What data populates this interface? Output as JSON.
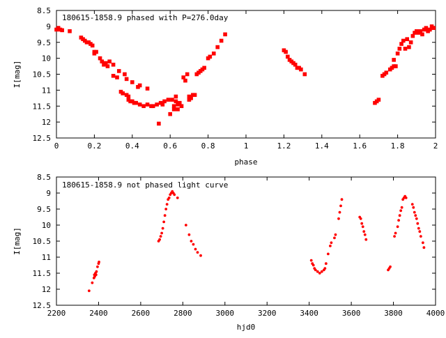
{
  "chart_data": [
    {
      "type": "scatter",
      "title": "180615-1858.9 phased with P=276.0day",
      "xlabel": "phase",
      "ylabel": "I[mag]",
      "xlim": [
        0,
        2
      ],
      "ylim": [
        12.5,
        8.5
      ],
      "y_inverted": true,
      "grid": false,
      "x_ticks": [
        "0",
        "0.2",
        "0.4",
        "0.6",
        "0.8",
        "1",
        "1.2",
        "1.4",
        "1.6",
        "1.8",
        "2"
      ],
      "x_tick_values": [
        0,
        0.2,
        0.4,
        0.6,
        0.8,
        1.0,
        1.2,
        1.4,
        1.6,
        1.8,
        2.0
      ],
      "y_ticks": [
        "8.5",
        "9",
        "9.5",
        "10",
        "10.5",
        "11",
        "11.5",
        "12",
        "12.5"
      ],
      "y_tick_values": [
        8.5,
        9,
        9.5,
        10,
        10.5,
        11,
        11.5,
        12,
        12.5
      ],
      "marker_color": "#ff0000",
      "points": [
        [
          0.0,
          9.1
        ],
        [
          0.01,
          9.05
        ],
        [
          0.02,
          9.1
        ],
        [
          0.03,
          9.12
        ],
        [
          0.07,
          9.15
        ],
        [
          0.13,
          9.35
        ],
        [
          0.14,
          9.4
        ],
        [
          0.15,
          9.45
        ],
        [
          0.16,
          9.5
        ],
        [
          0.17,
          9.5
        ],
        [
          0.18,
          9.55
        ],
        [
          0.19,
          9.6
        ],
        [
          0.2,
          9.8
        ],
        [
          0.2,
          9.85
        ],
        [
          0.21,
          9.8
        ],
        [
          0.23,
          10.0
        ],
        [
          0.24,
          10.1
        ],
        [
          0.25,
          10.2
        ],
        [
          0.26,
          10.15
        ],
        [
          0.27,
          10.25
        ],
        [
          0.28,
          10.1
        ],
        [
          0.3,
          10.2
        ],
        [
          0.3,
          10.55
        ],
        [
          0.32,
          10.6
        ],
        [
          0.33,
          10.4
        ],
        [
          0.34,
          11.05
        ],
        [
          0.35,
          11.1
        ],
        [
          0.36,
          10.5
        ],
        [
          0.37,
          10.65
        ],
        [
          0.37,
          11.15
        ],
        [
          0.38,
          11.2
        ],
        [
          0.38,
          11.3
        ],
        [
          0.39,
          11.35
        ],
        [
          0.4,
          10.75
        ],
        [
          0.4,
          11.35
        ],
        [
          0.41,
          11.4
        ],
        [
          0.42,
          11.4
        ],
        [
          0.43,
          10.9
        ],
        [
          0.44,
          10.85
        ],
        [
          0.44,
          11.45
        ],
        [
          0.46,
          11.5
        ],
        [
          0.48,
          10.95
        ],
        [
          0.48,
          11.45
        ],
        [
          0.5,
          11.5
        ],
        [
          0.51,
          11.5
        ],
        [
          0.53,
          11.45
        ],
        [
          0.54,
          12.05
        ],
        [
          0.55,
          11.4
        ],
        [
          0.56,
          11.45
        ],
        [
          0.57,
          11.35
        ],
        [
          0.59,
          11.3
        ],
        [
          0.6,
          11.75
        ],
        [
          0.61,
          11.3
        ],
        [
          0.62,
          11.5
        ],
        [
          0.62,
          11.6
        ],
        [
          0.63,
          11.2
        ],
        [
          0.63,
          11.35
        ],
        [
          0.64,
          11.45
        ],
        [
          0.64,
          11.6
        ],
        [
          0.65,
          11.4
        ],
        [
          0.66,
          11.5
        ],
        [
          0.67,
          10.6
        ],
        [
          0.68,
          10.7
        ],
        [
          0.69,
          10.5
        ],
        [
          0.7,
          11.3
        ],
        [
          0.7,
          11.2
        ],
        [
          0.71,
          11.25
        ],
        [
          0.72,
          11.15
        ],
        [
          0.73,
          11.15
        ],
        [
          0.74,
          10.5
        ],
        [
          0.75,
          10.45
        ],
        [
          0.76,
          10.4
        ],
        [
          0.77,
          10.35
        ],
        [
          0.78,
          10.3
        ],
        [
          0.8,
          10.0
        ],
        [
          0.81,
          9.95
        ],
        [
          0.83,
          9.85
        ],
        [
          0.85,
          9.65
        ],
        [
          0.87,
          9.45
        ],
        [
          0.89,
          9.25
        ],
        [
          1.2,
          9.75
        ],
        [
          1.21,
          9.8
        ],
        [
          1.22,
          9.95
        ],
        [
          1.23,
          10.05
        ],
        [
          1.24,
          10.1
        ],
        [
          1.25,
          10.15
        ],
        [
          1.26,
          10.2
        ],
        [
          1.27,
          10.3
        ],
        [
          1.28,
          10.3
        ],
        [
          1.29,
          10.35
        ],
        [
          1.31,
          10.5
        ],
        [
          1.68,
          11.4
        ],
        [
          1.69,
          11.35
        ],
        [
          1.7,
          11.3
        ],
        [
          1.72,
          10.55
        ],
        [
          1.73,
          10.5
        ],
        [
          1.74,
          10.45
        ],
        [
          1.76,
          10.35
        ],
        [
          1.77,
          10.3
        ],
        [
          1.78,
          10.25
        ],
        [
          1.78,
          10.05
        ],
        [
          1.79,
          10.25
        ],
        [
          1.8,
          9.85
        ],
        [
          1.81,
          9.7
        ],
        [
          1.82,
          9.55
        ],
        [
          1.83,
          9.45
        ],
        [
          1.84,
          9.7
        ],
        [
          1.85,
          9.4
        ],
        [
          1.86,
          9.65
        ],
        [
          1.87,
          9.5
        ],
        [
          1.88,
          9.3
        ],
        [
          1.89,
          9.2
        ],
        [
          1.9,
          9.15
        ],
        [
          1.91,
          9.2
        ],
        [
          1.92,
          9.15
        ],
        [
          1.93,
          9.25
        ],
        [
          1.94,
          9.1
        ],
        [
          1.95,
          9.05
        ],
        [
          1.96,
          9.15
        ],
        [
          1.97,
          9.1
        ],
        [
          1.98,
          9.0
        ],
        [
          1.99,
          9.05
        ]
      ]
    },
    {
      "type": "scatter",
      "title": "180615-1858.9 not phased light curve",
      "xlabel": "hjd0",
      "ylabel": "I[mag]",
      "xlim": [
        2200,
        4000
      ],
      "ylim": [
        12.5,
        8.5
      ],
      "y_inverted": true,
      "grid": false,
      "x_ticks": [
        "2200",
        "2400",
        "2600",
        "2800",
        "3000",
        "3200",
        "3400",
        "3600",
        "3800",
        "4000"
      ],
      "x_tick_values": [
        2200,
        2400,
        2600,
        2800,
        3000,
        3200,
        3400,
        3600,
        3800,
        4000
      ],
      "y_ticks": [
        "8.5",
        "9",
        "9.5",
        "10",
        "10.5",
        "11",
        "11.5",
        "12",
        "12.5"
      ],
      "y_tick_values": [
        8.5,
        9,
        9.5,
        10,
        10.5,
        11,
        11.5,
        12,
        12.5
      ],
      "marker_color": "#ff0000",
      "points": [
        [
          2355,
          12.05
        ],
        [
          2370,
          11.8
        ],
        [
          2378,
          11.65
        ],
        [
          2380,
          11.55
        ],
        [
          2382,
          11.6
        ],
        [
          2385,
          11.5
        ],
        [
          2388,
          11.55
        ],
        [
          2390,
          11.45
        ],
        [
          2395,
          11.3
        ],
        [
          2400,
          11.2
        ],
        [
          2402,
          11.15
        ],
        [
          2685,
          10.5
        ],
        [
          2690,
          10.45
        ],
        [
          2695,
          10.35
        ],
        [
          2700,
          10.25
        ],
        [
          2705,
          10.1
        ],
        [
          2710,
          9.9
        ],
        [
          2715,
          9.7
        ],
        [
          2720,
          9.5
        ],
        [
          2725,
          9.35
        ],
        [
          2730,
          9.2
        ],
        [
          2735,
          9.15
        ],
        [
          2740,
          9.05
        ],
        [
          2745,
          9.0
        ],
        [
          2750,
          8.95
        ],
        [
          2755,
          9.0
        ],
        [
          2760,
          9.05
        ],
        [
          2775,
          9.15
        ],
        [
          2815,
          10.0
        ],
        [
          2830,
          10.3
        ],
        [
          2840,
          10.5
        ],
        [
          2850,
          10.6
        ],
        [
          2860,
          10.75
        ],
        [
          2870,
          10.85
        ],
        [
          2885,
          10.95
        ],
        [
          3410,
          11.1
        ],
        [
          3415,
          11.2
        ],
        [
          3420,
          11.25
        ],
        [
          3425,
          11.35
        ],
        [
          3430,
          11.4
        ],
        [
          3440,
          11.45
        ],
        [
          3450,
          11.5
        ],
        [
          3460,
          11.45
        ],
        [
          3470,
          11.4
        ],
        [
          3475,
          11.35
        ],
        [
          3480,
          11.2
        ],
        [
          3490,
          10.9
        ],
        [
          3500,
          10.65
        ],
        [
          3505,
          10.55
        ],
        [
          3520,
          10.4
        ],
        [
          3525,
          10.3
        ],
        [
          3540,
          9.8
        ],
        [
          3545,
          9.6
        ],
        [
          3550,
          9.4
        ],
        [
          3555,
          9.2
        ],
        [
          3640,
          9.75
        ],
        [
          3645,
          9.8
        ],
        [
          3650,
          9.95
        ],
        [
          3655,
          10.05
        ],
        [
          3660,
          10.2
        ],
        [
          3665,
          10.3
        ],
        [
          3670,
          10.45
        ],
        [
          3775,
          11.4
        ],
        [
          3780,
          11.35
        ],
        [
          3785,
          11.3
        ],
        [
          3805,
          10.35
        ],
        [
          3810,
          10.25
        ],
        [
          3820,
          10.05
        ],
        [
          3825,
          9.85
        ],
        [
          3830,
          9.7
        ],
        [
          3835,
          9.55
        ],
        [
          3840,
          9.45
        ],
        [
          3845,
          9.2
        ],
        [
          3850,
          9.15
        ],
        [
          3855,
          9.1
        ],
        [
          3860,
          9.15
        ],
        [
          3890,
          9.35
        ],
        [
          3895,
          9.45
        ],
        [
          3900,
          9.6
        ],
        [
          3905,
          9.7
        ],
        [
          3910,
          9.8
        ],
        [
          3915,
          9.95
        ],
        [
          3920,
          10.1
        ],
        [
          3925,
          10.2
        ],
        [
          3930,
          10.35
        ],
        [
          3940,
          10.55
        ],
        [
          3945,
          10.7
        ]
      ]
    }
  ]
}
